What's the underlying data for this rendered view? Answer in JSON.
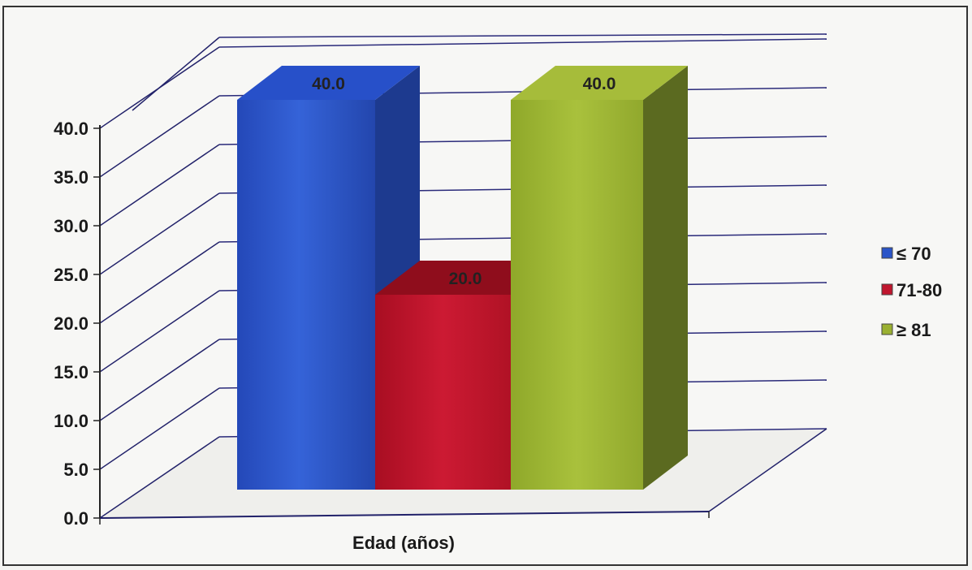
{
  "chart_data": {
    "type": "bar",
    "xlabel": "Edad (años)",
    "ylabel": "",
    "title": "",
    "ylim": [
      0,
      40
    ],
    "yticks": [
      "0.0",
      "5.0",
      "10.0",
      "15.0",
      "20.0",
      "25.0",
      "30.0",
      "35.0",
      "40.0"
    ],
    "series": [
      {
        "name": "≤ 70",
        "value": 40.0,
        "label": "40.0",
        "color": "#2b55c8"
      },
      {
        "name": "71-80",
        "value": 20.0,
        "label": "20.0",
        "color": "#c0162e"
      },
      {
        "name": "≥ 81",
        "value": 40.0,
        "label": "40.0",
        "color": "#9ab031"
      }
    ],
    "grid": true,
    "legend_position": "right",
    "style": "3d-column"
  }
}
